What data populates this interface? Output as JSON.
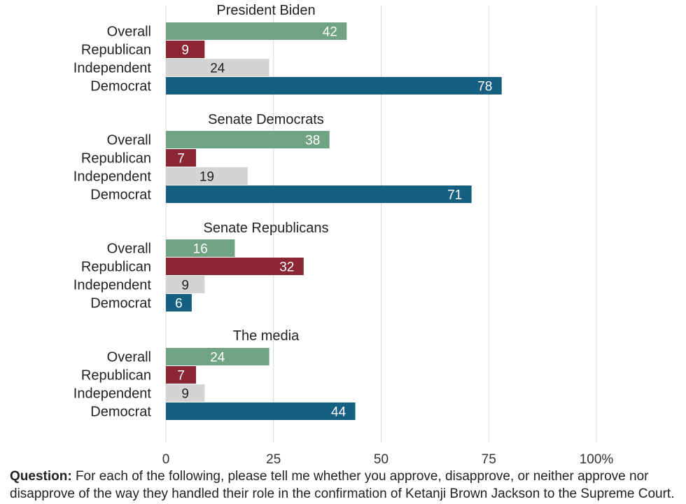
{
  "chart_data": {
    "type": "bar",
    "orientation": "horizontal",
    "xlim": [
      0,
      100
    ],
    "x_ticks": [
      "0",
      "25",
      "50",
      "75",
      "100%"
    ],
    "grid": true,
    "categories": [
      "Overall",
      "Republican",
      "Independent",
      "Democrat"
    ],
    "colors": {
      "Overall": "#6fa383",
      "Republican": "#8b2635",
      "Independent": "#d4d4d4",
      "Democrat": "#175f80"
    },
    "groups": [
      {
        "title": "President Biden",
        "values": [
          42,
          9,
          24,
          78
        ]
      },
      {
        "title": "Senate Democrats",
        "values": [
          38,
          7,
          19,
          71
        ]
      },
      {
        "title": "Senate Republicans",
        "values": [
          16,
          32,
          9,
          6
        ]
      },
      {
        "title": "The media",
        "values": [
          24,
          7,
          9,
          44
        ]
      }
    ]
  },
  "footer": {
    "question_label": "Question:",
    "question_text": " For each of the following, please tell me whether you approve, disapprove, or neither approve nor disapprove of the way they handled their role in the confirmation of Ketanji Brown Jackson to the Supreme Court."
  }
}
